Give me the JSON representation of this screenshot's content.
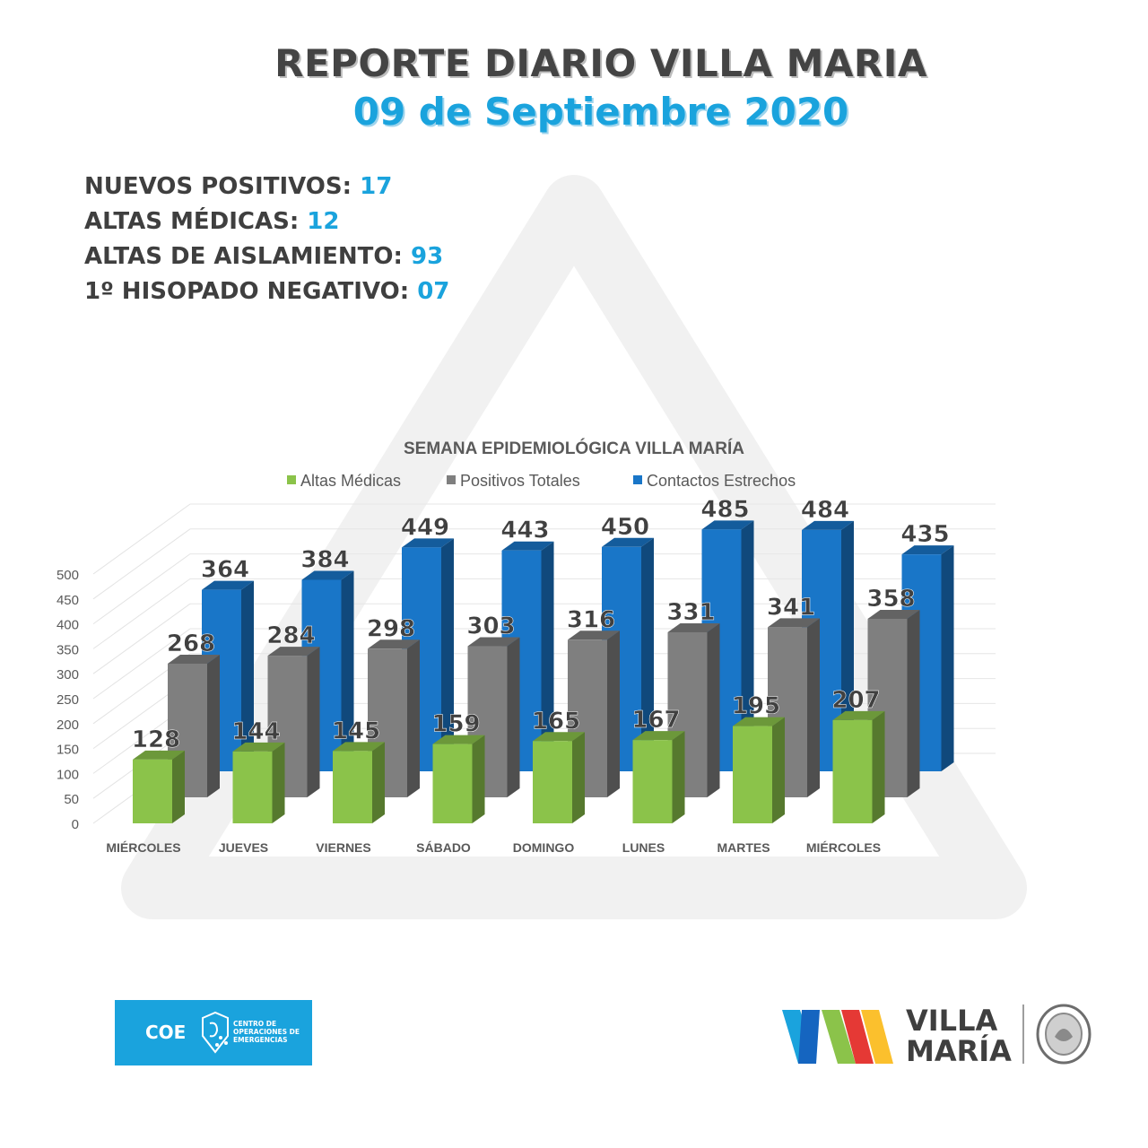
{
  "header": {
    "title": "REPORTE DIARIO VILLA MARIA",
    "date": "09 de Septiembre 2020"
  },
  "stats": [
    {
      "label": "NUEVOS POSITIVOS:",
      "value": "17"
    },
    {
      "label": "ALTAS MÉDICAS:",
      "value": "12"
    },
    {
      "label": "ALTAS DE AISLAMIENTO:",
      "value": "93"
    },
    {
      "label": "1º HISOPADO NEGATIVO:",
      "value": "07"
    }
  ],
  "colors": {
    "green": "#8bc34a",
    "gray": "#7f7f7f",
    "blue": "#1976c8",
    "accent": "#1aa3dd",
    "text": "#3f3f3f"
  },
  "chart_data": {
    "type": "bar",
    "title": "SEMANA EPIDEMIOLÓGICA VILLA MARÍA",
    "categories": [
      "MIÉRCOLES",
      "JUEVES",
      "VIERNES",
      "SÁBADO",
      "DOMINGO",
      "LUNES",
      "MARTES",
      "MIÉRCOLES"
    ],
    "series": [
      {
        "name": "Altas Médicas",
        "values": [
          128,
          144,
          145,
          159,
          165,
          167,
          195,
          207
        ]
      },
      {
        "name": "Positivos Totales",
        "values": [
          268,
          284,
          298,
          303,
          316,
          331,
          341,
          358
        ]
      },
      {
        "name": "Contactos Estrechos",
        "values": [
          364,
          384,
          449,
          443,
          450,
          485,
          484,
          435
        ]
      }
    ],
    "yticks": [
      "0",
      "50",
      "100",
      "150",
      "200",
      "250",
      "300",
      "350",
      "400",
      "450",
      "500"
    ],
    "ylim": [
      0,
      500
    ],
    "legend": "top",
    "grid": true
  },
  "logos": {
    "coe": {
      "abbr": "COE",
      "name": "CENTRO DE OPERACIONES DE EMERGENCIAS"
    },
    "vm": {
      "line1": "VILLA",
      "line2": "MARÍA"
    }
  }
}
